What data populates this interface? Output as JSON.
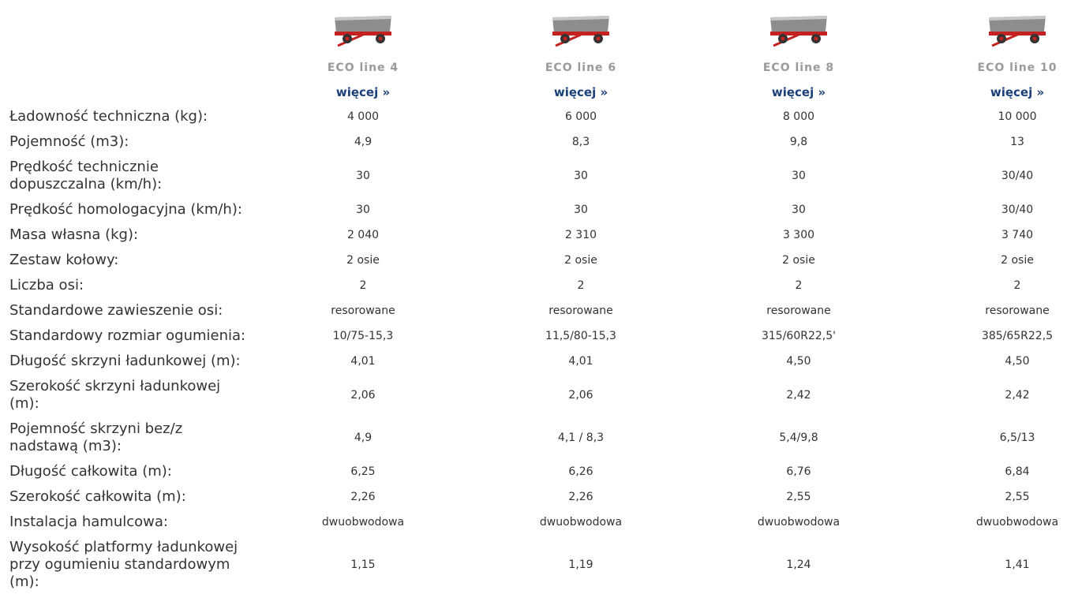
{
  "products": [
    {
      "name": "ECO line 4",
      "link": "więcej »"
    },
    {
      "name": "ECO line 6",
      "link": "więcej »"
    },
    {
      "name": "ECO line 8",
      "link": "więcej »"
    },
    {
      "name": "ECO line 10",
      "link": "więcej »"
    }
  ],
  "rows": [
    {
      "label": "Ładowność techniczna (kg):",
      "values": [
        "4 000",
        "6 000",
        "8 000",
        "10 000"
      ]
    },
    {
      "label": "Pojemność (m3):",
      "values": [
        "4,9",
        "8,3",
        "9,8",
        "13"
      ]
    },
    {
      "label": "Prędkość technicznie dopuszczalna (km/h):",
      "values": [
        "30",
        "30",
        "30",
        "30/40"
      ]
    },
    {
      "label": "Prędkość homologacyjna (km/h):",
      "values": [
        "30",
        "30",
        "30",
        "30/40"
      ]
    },
    {
      "label": "Masa własna (kg):",
      "values": [
        "2 040",
        "2 310",
        "3 300",
        "3 740"
      ]
    },
    {
      "label": "Zestaw kołowy:",
      "values": [
        "2 osie",
        "2 osie",
        "2 osie",
        "2 osie"
      ]
    },
    {
      "label": "Liczba osi:",
      "values": [
        "2",
        "2",
        "2",
        "2"
      ]
    },
    {
      "label": "Standardowe zawieszenie osi:",
      "values": [
        "resorowane",
        "resorowane",
        "resorowane",
        "resorowane"
      ]
    },
    {
      "label": "Standardowy rozmiar ogumienia:",
      "values": [
        "10/75-15,3",
        "11,5/80-15,3",
        "315/60R22,5'",
        "385/65R22,5"
      ]
    },
    {
      "label": "Długość skrzyni ładunkowej (m):",
      "values": [
        "4,01",
        "4,01",
        "4,50",
        "4,50"
      ]
    },
    {
      "label": "Szerokość skrzyni ładunkowej (m):",
      "values": [
        "2,06",
        "2,06",
        "2,42",
        "2,42"
      ]
    },
    {
      "label": "Pojemność skrzyni bez/z nadstawą (m3):",
      "values": [
        "4,9",
        "4,1 / 8,3",
        "5,4/9,8",
        "6,5/13"
      ]
    },
    {
      "label": "Długość całkowita (m):",
      "values": [
        "6,25",
        "6,26",
        "6,76",
        "6,84"
      ]
    },
    {
      "label": "Szerokość całkowita (m):",
      "values": [
        "2,26",
        "2,26",
        "2,55",
        "2,55"
      ]
    },
    {
      "label": "Instalacja hamulcowa:",
      "values": [
        "dwuobwodowa",
        "dwuobwodowa",
        "dwuobwodowa",
        "dwuobwodowa"
      ]
    },
    {
      "label": "Wysokość platformy ładunkowej przy ogumieniu standardowym (m):",
      "values": [
        "1,15",
        "1,19",
        "1,24",
        "1,41"
      ]
    }
  ]
}
